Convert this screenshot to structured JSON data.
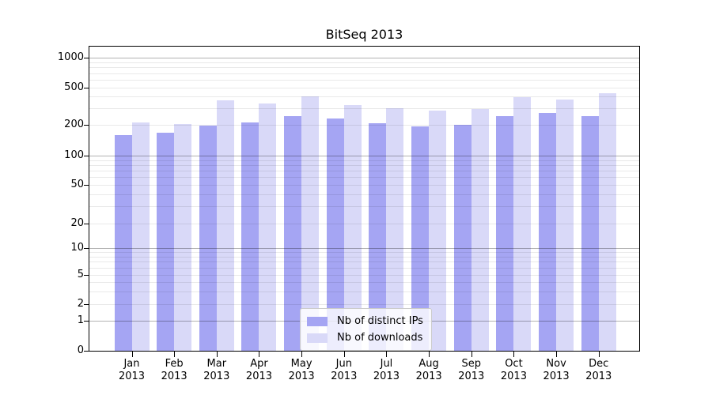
{
  "chart_data": {
    "type": "bar",
    "title": "BitSeq 2013",
    "categories": [
      "Jan",
      "Feb",
      "Mar",
      "Apr",
      "May",
      "Jun",
      "Jul",
      "Aug",
      "Sep",
      "Oct",
      "Nov",
      "Dec"
    ],
    "x_year": "2013",
    "series": [
      {
        "name": "Nb of distinct IPs",
        "color": "#a5a5f3",
        "values": [
          158,
          168,
          196,
          210,
          248,
          234,
          208,
          193,
          200,
          248,
          268,
          248
        ]
      },
      {
        "name": "Nb of downloads",
        "color": "#d9d9f8",
        "values": [
          212,
          203,
          365,
          339,
          404,
          326,
          301,
          284,
          295,
          396,
          373,
          436
        ]
      }
    ],
    "yaxis": {
      "scale": "symlog",
      "ticks": [
        0,
        1,
        2,
        5,
        10,
        20,
        50,
        100,
        200,
        500,
        1000
      ],
      "ylim": [
        0,
        1300
      ]
    },
    "xlabel": "",
    "ylabel": "",
    "grid": "horizontal, log minor + major",
    "legend_position": "inside lower center"
  }
}
